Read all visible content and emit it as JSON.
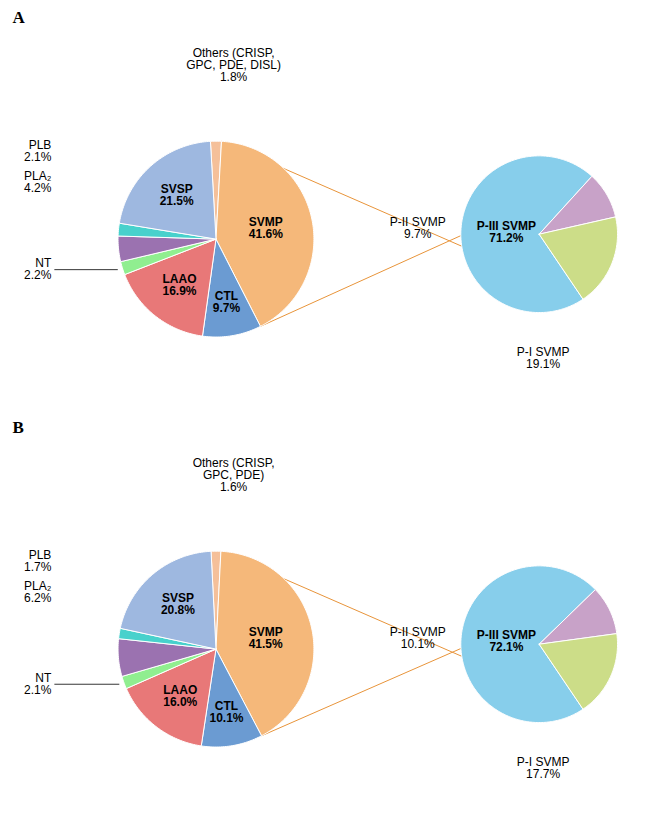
{
  "chart_data": [
    {
      "type": "pie",
      "title": "A",
      "categories": [
        "Others (CRISP,\nGPC, PDE, DISL)",
        "SVMP",
        "CTL",
        "LAAO",
        "NT",
        "PLA₂",
        "PLB",
        "SVSP"
      ],
      "values": [
        1.8,
        41.6,
        9.7,
        16.9,
        2.2,
        4.2,
        2.1,
        21.5
      ],
      "value_labels": [
        "1.8%",
        "41.6%",
        "9.7%",
        "16.9%",
        "2.2%",
        "4.2%",
        "2.1%",
        "21.5%"
      ],
      "colors": [
        "#F5C09A",
        "#F5B87A",
        "#6B9BD2",
        "#E87878",
        "#90EE90",
        "#9B72B0",
        "#48D1CC",
        "#9EB8E0"
      ],
      "data_labels": true
    },
    {
      "type": "pie",
      "categories": [
        "P-III SVMP",
        "P-II SVMP",
        "P-I SVMP"
      ],
      "values": [
        71.2,
        9.7,
        19.1
      ],
      "value_labels": [
        "71.2%",
        "9.7%",
        "19.1%"
      ],
      "colors": [
        "#87CEEB",
        "#C8A2C8",
        "#CCDD88"
      ],
      "color": "#E8943A",
      "data_labels": true
    },
    {
      "type": "pie",
      "title": "B",
      "categories": [
        "Others (CRISP,\nGPC, PDE)",
        "SVMP",
        "CTL",
        "LAAO",
        "NT",
        "PLA₂",
        "PLB",
        "SVSP"
      ],
      "values": [
        1.6,
        41.5,
        10.1,
        16.0,
        2.1,
        6.2,
        1.7,
        20.8
      ],
      "value_labels": [
        "1.6%",
        "41.5%",
        "10.1%",
        "16.0%",
        "2.1%",
        "6.2%",
        "1.7%",
        "20.8%"
      ],
      "colors": [
        "#F5C09A",
        "#F5B87A",
        "#6B9BD2",
        "#E87878",
        "#90EE90",
        "#9B72B0",
        "#48D1CC",
        "#9EB8E0"
      ],
      "data_labels": true
    },
    {
      "type": "pie",
      "categories": [
        "P-III SVMP",
        "P-II SVMP",
        "P-I SVMP"
      ],
      "values": [
        72.1,
        10.1,
        17.7
      ],
      "value_labels": [
        "72.1%",
        "10.1%",
        "17.7%"
      ],
      "colors": [
        "#87CEEB",
        "#C8A2C8",
        "#CCDD88"
      ],
      "color": "#E8943A",
      "data_labels": true
    }
  ]
}
